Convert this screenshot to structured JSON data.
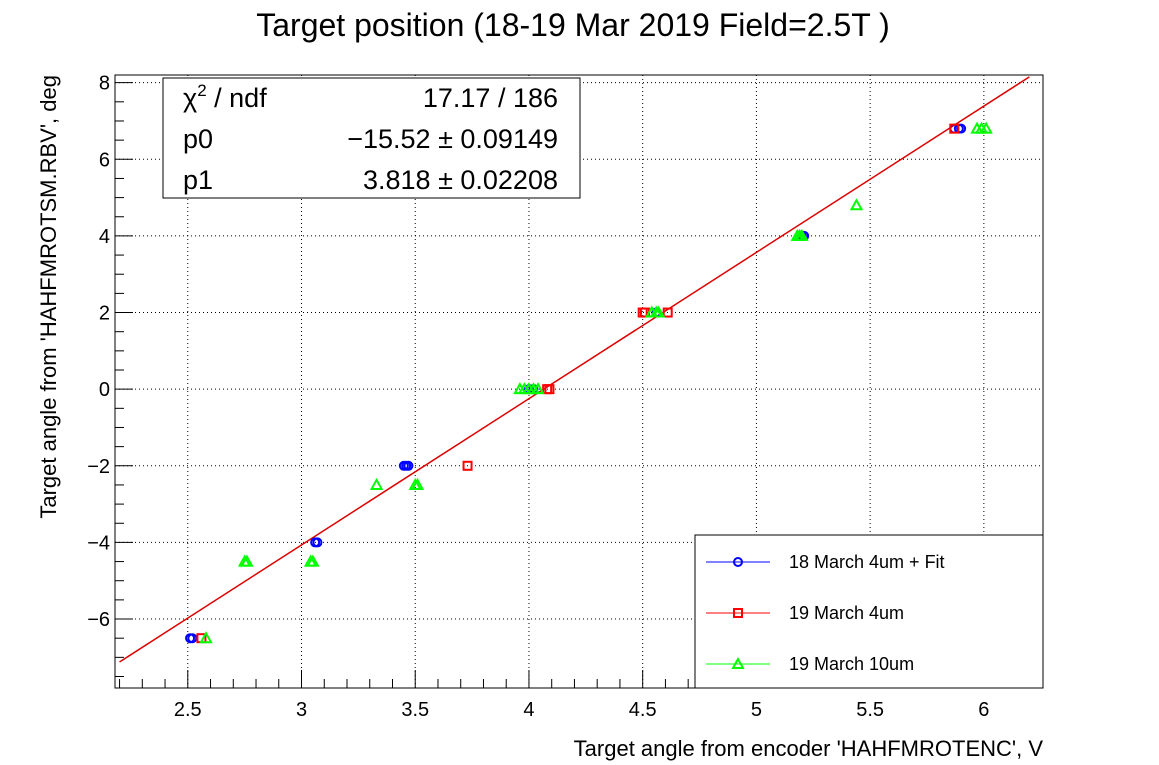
{
  "chart_data": {
    "type": "scatter",
    "title": "Target position (18-19 Mar 2019 Field=2.5T )",
    "xlabel": "Target angle from encoder 'HAHFMROTENC', V",
    "ylabel": "Target angle from 'HAHFMROTSM.RBV', deg",
    "xlim": [
      2.18,
      6.26
    ],
    "ylim": [
      -7.8,
      8.2
    ],
    "x_ticks": [
      2.5,
      3,
      3.5,
      4,
      4.5,
      5,
      5.5,
      6
    ],
    "x_tick_labels": [
      "2.5",
      "3",
      "3.5",
      "4",
      "4.5",
      "5",
      "5.5",
      "6"
    ],
    "y_ticks": [
      -6,
      -4,
      -2,
      0,
      2,
      4,
      6,
      8
    ],
    "y_tick_labels": [
      "−6",
      "−4",
      "−2",
      "0",
      "2",
      "4",
      "6",
      "8"
    ],
    "grid": true,
    "legend_position": "bottom-right",
    "series": [
      {
        "name": "18 March 4um + Fit",
        "color": "#0000ff",
        "marker": "circle",
        "points": [
          [
            2.51,
            -6.5
          ],
          [
            2.52,
            -6.5
          ],
          [
            3.06,
            -4.0
          ],
          [
            3.07,
            -4.0
          ],
          [
            3.45,
            -2.0
          ],
          [
            3.46,
            -2.0
          ],
          [
            3.47,
            -2.0
          ],
          [
            4.0,
            0.0
          ],
          [
            4.02,
            0.0
          ],
          [
            4.56,
            2.0
          ],
          [
            5.2,
            4.0
          ],
          [
            5.21,
            4.0
          ],
          [
            5.87,
            6.8
          ],
          [
            5.89,
            6.8
          ],
          [
            5.9,
            6.8
          ]
        ]
      },
      {
        "name": "19 March 4um",
        "color": "#ff0000",
        "marker": "square",
        "points": [
          [
            2.56,
            -6.5
          ],
          [
            3.73,
            -2.0
          ],
          [
            4.08,
            0.0
          ],
          [
            4.09,
            0.0
          ],
          [
            4.5,
            2.0
          ],
          [
            4.51,
            2.0
          ],
          [
            4.61,
            2.0
          ],
          [
            5.87,
            6.8
          ]
        ]
      },
      {
        "name": "19 March 10um",
        "color": "#00ff00",
        "marker": "triangle",
        "points": [
          [
            2.58,
            -6.5
          ],
          [
            2.75,
            -4.5
          ],
          [
            2.76,
            -4.5
          ],
          [
            3.04,
            -4.5
          ],
          [
            3.05,
            -4.5
          ],
          [
            3.33,
            -2.5
          ],
          [
            3.5,
            -2.5
          ],
          [
            3.51,
            -2.5
          ],
          [
            3.96,
            0.0
          ],
          [
            3.98,
            0.0
          ],
          [
            4.0,
            0.0
          ],
          [
            4.02,
            0.0
          ],
          [
            4.04,
            0.0
          ],
          [
            4.54,
            2.0
          ],
          [
            4.56,
            2.0
          ],
          [
            4.57,
            2.0
          ],
          [
            5.18,
            4.0
          ],
          [
            5.19,
            4.0
          ],
          [
            5.2,
            4.0
          ],
          [
            5.44,
            4.8
          ],
          [
            5.97,
            6.8
          ],
          [
            5.99,
            6.8
          ],
          [
            6.01,
            6.8
          ]
        ]
      }
    ],
    "fit": {
      "color": "#dd0000",
      "p0": -15.52,
      "p1": 3.818,
      "x_range": [
        2.2,
        6.2
      ]
    }
  },
  "stats": {
    "chi2_symbol": "χ",
    "chi2_sup": "2",
    "chi2_suffix": " / ndf",
    "chi2_value": "17.17 / 186",
    "p0_label": "p0",
    "p0_value": "−15.52 ± 0.09149",
    "p1_label": "p1",
    "p1_value": "3.818 ± 0.02208"
  }
}
